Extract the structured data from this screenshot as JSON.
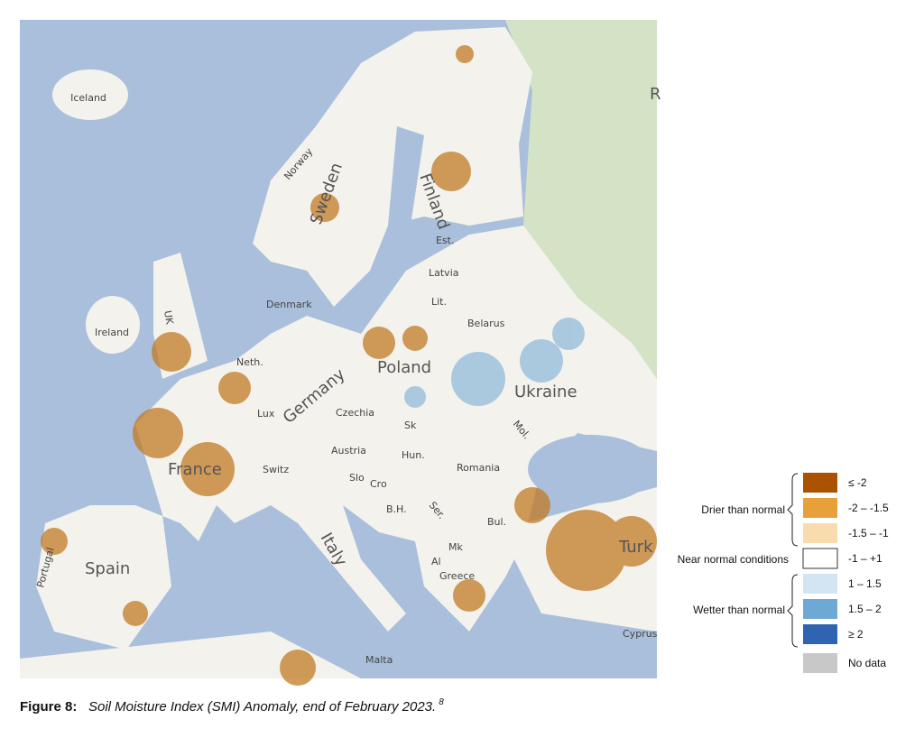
{
  "map": {
    "labels": [
      "Iceland",
      "Norway",
      "Sweden",
      "Finland",
      "Est.",
      "Latvia",
      "Lit.",
      "Denmark",
      "Belarus",
      "Ireland",
      "UK",
      "Neth.",
      "Poland",
      "Ukraine",
      "Germany",
      "Lux",
      "Czechia",
      "Sk",
      "Mol.",
      "France",
      "Switz",
      "Austria",
      "Hun.",
      "Romania",
      "Slo",
      "Cro",
      "Ser.",
      "B.H.",
      "Bul.",
      "Italy",
      "Mk",
      "Al",
      "Greece",
      "Spain",
      "Portugal",
      "Malta",
      "Cyprus",
      "Turk",
      "R"
    ]
  },
  "legend": {
    "groups": [
      "Drier than normal",
      "Near normal conditions",
      "Wetter than normal"
    ],
    "items": [
      {
        "label": "≤ -2",
        "color": "#a95300"
      },
      {
        "label": "-2 – -1.5",
        "color": "#e8a13a"
      },
      {
        "label": "-1.5 – -1",
        "color": "#f8dcae"
      },
      {
        "label": "-1 – +1",
        "color": "#ffffff"
      },
      {
        "label": "1 – 1.5",
        "color": "#d3e5f3"
      },
      {
        "label": "1.5 – 2",
        "color": "#6ea9d6"
      },
      {
        "label": "≥ 2",
        "color": "#2f64b3"
      },
      {
        "label": "No data",
        "color": "#c8c8c8"
      }
    ]
  },
  "caption": {
    "figure": "Figure 8:",
    "text": "Soil Moisture Index (SMI) Anomaly, end of February 2023.",
    "footnote": "8"
  }
}
